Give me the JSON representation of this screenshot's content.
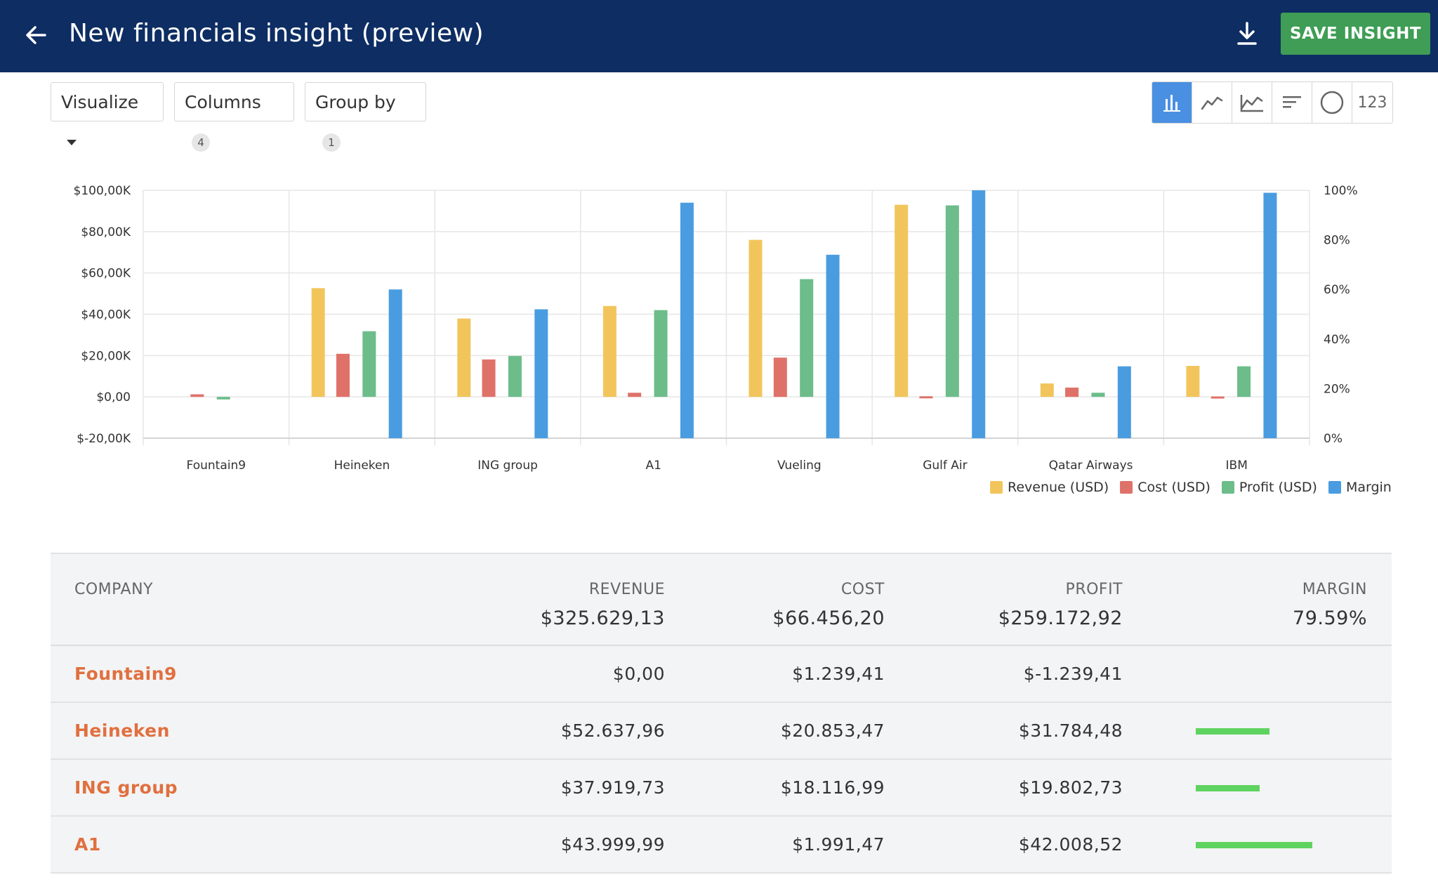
{
  "header": {
    "title": "New financials insight (preview)",
    "save_label": "SAVE INSIGHT",
    "back_icon": "arrow-left-icon",
    "download_icon": "download-icon"
  },
  "toolbar": {
    "visualize_label": "Visualize",
    "columns_label": "Columns",
    "columns_count": "4",
    "groupby_label": "Group by",
    "groupby_count": "1",
    "viz_types": [
      "bar-chart-icon",
      "line-chart-icon",
      "area-chart-icon",
      "horizontal-bar-icon",
      "pie-chart-icon",
      "123"
    ],
    "active_viz": "bar-chart-icon",
    "number_label": "123"
  },
  "colors": {
    "revenue": "#f2c55c",
    "cost": "#df7268",
    "profit": "#6cbd8a",
    "margin": "#4a9ce0",
    "header_bg": "#0d2d63",
    "save_button": "#3f9d55",
    "company_link": "#e0703f",
    "margin_bar": "#5fd35f"
  },
  "chart_data": {
    "type": "bar",
    "categories": [
      "Fountain9",
      "Heineken",
      "ING group",
      "A1",
      "Vueling",
      "Gulf Air",
      "Qatar Airways",
      "IBM"
    ],
    "series": [
      {
        "name": "Revenue (USD)",
        "axis": "left",
        "values": [
          0,
          52637.96,
          37919.73,
          43999.99,
          76000,
          93000,
          6500,
          15000
        ]
      },
      {
        "name": "Cost (USD)",
        "axis": "left",
        "values": [
          1239.41,
          20853.47,
          18116.99,
          1991.47,
          19000,
          300,
          4500,
          200
        ]
      },
      {
        "name": "Profit (USD)",
        "axis": "left",
        "values": [
          -1239.41,
          31784.48,
          19802.73,
          42008.52,
          57000,
          92700,
          2000,
          14800
        ]
      },
      {
        "name": "Margin",
        "axis": "right",
        "values": [
          0,
          60,
          52,
          95,
          74,
          100,
          29,
          99
        ]
      }
    ],
    "y_left": {
      "ticks": [
        "$100,00K",
        "$80,00K",
        "$60,00K",
        "$40,00K",
        "$20,00K",
        "$0,00",
        "$-20,00K"
      ],
      "range": [
        -20000,
        100000
      ]
    },
    "y_right": {
      "ticks": [
        "100%",
        "80%",
        "60%",
        "40%",
        "20%",
        "0%"
      ],
      "range": [
        0,
        100
      ]
    },
    "grid": true,
    "legend_position": "bottom-right"
  },
  "table": {
    "columns": [
      "COMPANY",
      "REVENUE",
      "COST",
      "PROFIT",
      "MARGIN"
    ],
    "totals": {
      "revenue": "$325.629,13",
      "cost": "$66.456,20",
      "profit": "$259.172,92",
      "margin": "79.59%"
    },
    "rows": [
      {
        "company": "Fountain9",
        "revenue": "$0,00",
        "cost": "$1.239,41",
        "profit": "$-1.239,41",
        "margin_fraction": 0
      },
      {
        "company": "Heineken",
        "revenue": "$52.637,96",
        "cost": "$20.853,47",
        "profit": "$31.784,48",
        "margin_fraction": 0.6
      },
      {
        "company": "ING group",
        "revenue": "$37.919,73",
        "cost": "$18.116,99",
        "profit": "$19.802,73",
        "margin_fraction": 0.52
      },
      {
        "company": "A1",
        "revenue": "$43.999,99",
        "cost": "$1.991,47",
        "profit": "$42.008,52",
        "margin_fraction": 0.95
      }
    ]
  }
}
